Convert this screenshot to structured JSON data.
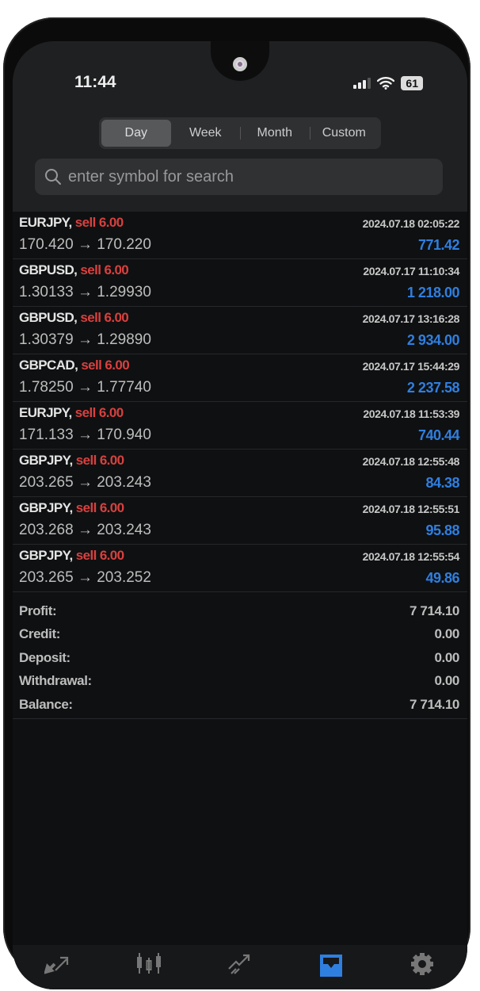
{
  "status_bar": {
    "time": "11:44",
    "battery": "61"
  },
  "period_tabs": [
    {
      "label": "Day",
      "active": true
    },
    {
      "label": "Week"
    },
    {
      "label": "Month"
    },
    {
      "label": "Custom"
    }
  ],
  "search": {
    "placeholder": "enter symbol for search"
  },
  "deals": [
    {
      "symbol": "EURJPY,",
      "side": "sell 6.00",
      "prices": "170.420 → 170.220",
      "time": "2024.07.18 02:05:22",
      "profit": "771.42"
    },
    {
      "symbol": "GBPUSD,",
      "side": "sell 6.00",
      "prices": "1.30133 → 1.29930",
      "time": "2024.07.17 11:10:34",
      "profit": "1 218.00"
    },
    {
      "symbol": "GBPUSD,",
      "side": "sell 6.00",
      "prices": "1.30379 → 1.29890",
      "time": "2024.07.17 13:16:28",
      "profit": "2 934.00"
    },
    {
      "symbol": "GBPCAD,",
      "side": "sell 6.00",
      "prices": "1.78250 → 1.77740",
      "time": "2024.07.17 15:44:29",
      "profit": "2 237.58"
    },
    {
      "symbol": "EURJPY,",
      "side": "sell 6.00",
      "prices": "171.133 → 170.940",
      "time": "2024.07.18 11:53:39",
      "profit": "740.44"
    },
    {
      "symbol": "GBPJPY,",
      "side": "sell 6.00",
      "prices": "203.265 → 203.243",
      "time": "2024.07.18 12:55:48",
      "profit": "84.38"
    },
    {
      "symbol": "GBPJPY,",
      "side": "sell 6.00",
      "prices": "203.268 → 203.243",
      "time": "2024.07.18 12:55:51",
      "profit": "95.88"
    },
    {
      "symbol": "GBPJPY,",
      "side": "sell 6.00",
      "prices": "203.265 → 203.252",
      "time": "2024.07.18 12:55:54",
      "profit": "49.86"
    }
  ],
  "summary": [
    {
      "label": "Profit:",
      "value": "7 714.10"
    },
    {
      "label": "Credit:",
      "value": "0.00"
    },
    {
      "label": "Deposit:",
      "value": "0.00"
    },
    {
      "label": "Withdrawal:",
      "value": "0.00"
    },
    {
      "label": "Balance:",
      "value": "7 714.10"
    }
  ],
  "bottom_nav": [
    {
      "icon": "quotes-icon"
    },
    {
      "icon": "chart-icon"
    },
    {
      "icon": "trade-icon"
    },
    {
      "icon": "history-icon",
      "active": true
    },
    {
      "icon": "settings-icon"
    }
  ],
  "colors": {
    "sell": "#d8403f",
    "profit": "#2f7fe0",
    "active_tab": "#2f7fe0"
  }
}
